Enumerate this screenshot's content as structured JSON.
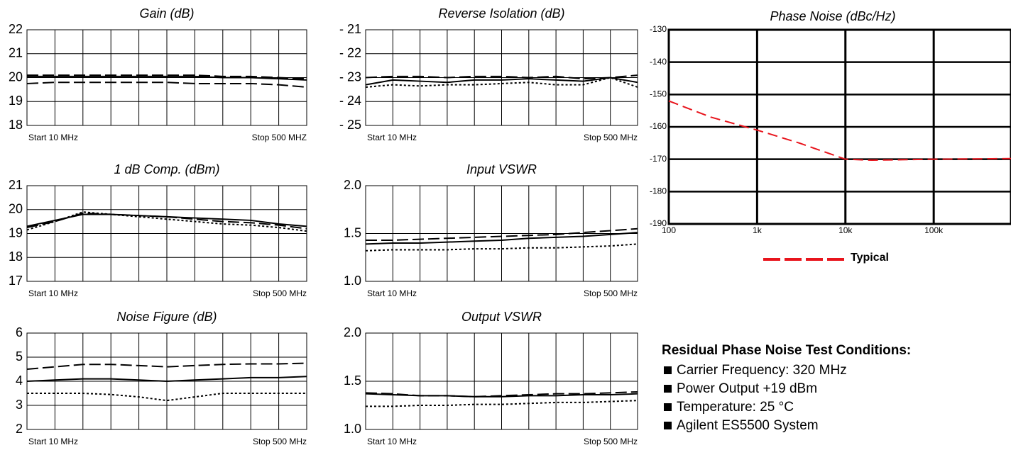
{
  "chart_data": [
    {
      "type": "line",
      "title": "Gain (dB)",
      "x_start_label": "Start 10 MHz",
      "x_stop_label": "Stop 500 MHZ",
      "x_divisions": 10,
      "ylim": [
        18,
        22
      ],
      "yticks": [
        18,
        19,
        20,
        21,
        22
      ],
      "grid": true,
      "series": [
        {
          "style": "dash",
          "values": [
            20.1,
            20.1,
            20.1,
            20.1,
            20.1,
            20.1,
            20.1,
            20.05,
            20.05,
            20.0,
            19.95
          ]
        },
        {
          "style": "solid",
          "values": [
            20.05,
            20.05,
            20.05,
            20.05,
            20.05,
            20.05,
            20.05,
            20.0,
            20.0,
            19.95,
            19.9
          ]
        },
        {
          "style": "dash",
          "values": [
            19.75,
            19.8,
            19.8,
            19.8,
            19.8,
            19.8,
            19.75,
            19.75,
            19.75,
            19.7,
            19.6
          ]
        }
      ]
    },
    {
      "type": "line",
      "title": "Reverse Isolation (dB)",
      "x_start_label": "Start 10 MHz",
      "x_stop_label": "Stop 500 MHz",
      "x_divisions": 10,
      "ylim": [
        -25,
        -21
      ],
      "yticks": [
        {
          "value": -25,
          "label": "- 25"
        },
        {
          "value": -24,
          "label": "- 24"
        },
        {
          "value": -23,
          "label": "- 23"
        },
        {
          "value": -22,
          "label": "- 22"
        },
        {
          "value": -21,
          "label": "- 21"
        }
      ],
      "grid": true,
      "series": [
        {
          "style": "dash",
          "values": [
            -23.0,
            -22.95,
            -22.95,
            -23.0,
            -22.95,
            -22.95,
            -23.0,
            -22.95,
            -23.05,
            -23.0,
            -22.9
          ]
        },
        {
          "style": "solid",
          "values": [
            -23.3,
            -23.1,
            -23.15,
            -23.2,
            -23.1,
            -23.1,
            -23.05,
            -23.1,
            -23.15,
            -23.0,
            -23.2
          ]
        },
        {
          "style": "dot",
          "values": [
            -23.4,
            -23.3,
            -23.35,
            -23.3,
            -23.3,
            -23.25,
            -23.2,
            -23.3,
            -23.3,
            -23.0,
            -23.4
          ]
        }
      ]
    },
    {
      "type": "line",
      "title": "1 dB Comp. (dBm)",
      "x_start_label": "Start 10 MHz",
      "x_stop_label": "Stop 500 MHz",
      "x_divisions": 10,
      "ylim": [
        17,
        21
      ],
      "yticks": [
        17,
        18,
        19,
        20,
        21
      ],
      "grid": true,
      "series": [
        {
          "style": "solid",
          "values": [
            19.3,
            19.55,
            19.8,
            19.8,
            19.75,
            19.7,
            19.65,
            19.6,
            19.55,
            19.4,
            19.3
          ]
        },
        {
          "style": "dash",
          "values": [
            19.25,
            19.5,
            19.85,
            19.8,
            19.75,
            19.7,
            19.6,
            19.5,
            19.45,
            19.35,
            19.2
          ]
        },
        {
          "style": "dot",
          "values": [
            19.15,
            19.5,
            19.9,
            19.8,
            19.7,
            19.6,
            19.5,
            19.4,
            19.35,
            19.25,
            19.1
          ]
        }
      ]
    },
    {
      "type": "line",
      "title": "Input VSWR",
      "x_start_label": "Start 10 MHz",
      "x_stop_label": "Stop 500 MHz",
      "x_divisions": 10,
      "ylim": [
        1,
        2
      ],
      "yticks": [
        {
          "value": 1,
          "label": "1.0"
        },
        1.5,
        {
          "value": 2,
          "label": "2.0"
        }
      ],
      "grid": true,
      "series": [
        {
          "style": "dash",
          "values": [
            1.43,
            1.43,
            1.44,
            1.45,
            1.46,
            1.47,
            1.48,
            1.49,
            1.51,
            1.53,
            1.55
          ]
        },
        {
          "style": "solid",
          "values": [
            1.39,
            1.4,
            1.4,
            1.41,
            1.42,
            1.43,
            1.45,
            1.46,
            1.47,
            1.49,
            1.51
          ]
        },
        {
          "style": "dot",
          "values": [
            1.32,
            1.33,
            1.33,
            1.33,
            1.34,
            1.34,
            1.35,
            1.35,
            1.36,
            1.37,
            1.39
          ]
        }
      ]
    },
    {
      "type": "line",
      "title": "Noise Figure (dB)",
      "x_start_label": "Start 10 MHz",
      "x_stop_label": "Stop 500 MHz",
      "x_divisions": 10,
      "ylim": [
        2,
        6
      ],
      "yticks": [
        2,
        3,
        4,
        5,
        6
      ],
      "grid": true,
      "series": [
        {
          "style": "dash",
          "values": [
            4.5,
            4.6,
            4.7,
            4.7,
            4.65,
            4.6,
            4.65,
            4.7,
            4.72,
            4.72,
            4.75
          ]
        },
        {
          "style": "solid",
          "values": [
            4.0,
            4.05,
            4.1,
            4.1,
            4.05,
            4.0,
            4.05,
            4.1,
            4.15,
            4.15,
            4.2
          ]
        },
        {
          "style": "dot",
          "values": [
            3.5,
            3.5,
            3.5,
            3.45,
            3.35,
            3.2,
            3.35,
            3.5,
            3.5,
            3.5,
            3.5
          ]
        }
      ]
    },
    {
      "type": "line",
      "title": "Output VSWR",
      "x_start_label": "Start 10 MHz",
      "x_stop_label": "Stop 500 MHz",
      "x_divisions": 10,
      "ylim": [
        1,
        2
      ],
      "yticks": [
        {
          "value": 1,
          "label": "1.0"
        },
        1.5,
        {
          "value": 2,
          "label": "2.0"
        }
      ],
      "grid": true,
      "series": [
        {
          "style": "dash",
          "values": [
            1.38,
            1.37,
            1.35,
            1.35,
            1.34,
            1.35,
            1.36,
            1.37,
            1.37,
            1.38,
            1.39
          ]
        },
        {
          "style": "solid",
          "values": [
            1.37,
            1.36,
            1.35,
            1.35,
            1.34,
            1.34,
            1.35,
            1.35,
            1.36,
            1.36,
            1.37
          ]
        },
        {
          "style": "dot",
          "values": [
            1.24,
            1.24,
            1.25,
            1.25,
            1.26,
            1.26,
            1.27,
            1.28,
            1.28,
            1.29,
            1.3
          ]
        }
      ]
    },
    {
      "type": "logline",
      "title": "Phase Noise (dBc/Hz)",
      "log_x": true,
      "xlim": [
        100,
        750000
      ],
      "xticks": [
        100,
        {
          "value": 1000,
          "label": "1k"
        },
        {
          "value": 10000,
          "label": "10k"
        },
        {
          "value": 100000,
          "label": "100k"
        }
      ],
      "ylim": [
        -190,
        -130
      ],
      "yticks": [
        -190,
        -180,
        -170,
        -160,
        -150,
        -140,
        -130
      ],
      "grid": true,
      "x": [
        100,
        300,
        1000,
        3000,
        10000,
        20000,
        100000,
        750000
      ],
      "series": [
        {
          "name": "Typical",
          "color": "#e8141c",
          "style": "dash",
          "values": [
            -152,
            -157,
            -161,
            -165,
            -170,
            -170.3,
            -170,
            -169.8
          ]
        }
      ]
    }
  ],
  "conditions": {
    "title": "Residual Phase Noise Test Conditions:",
    "items": [
      "Carrier Frequency: 320 MHz",
      "Power Output +19 dBm",
      "Temperature: 25 °C",
      "Agilent ES5500 System"
    ]
  }
}
